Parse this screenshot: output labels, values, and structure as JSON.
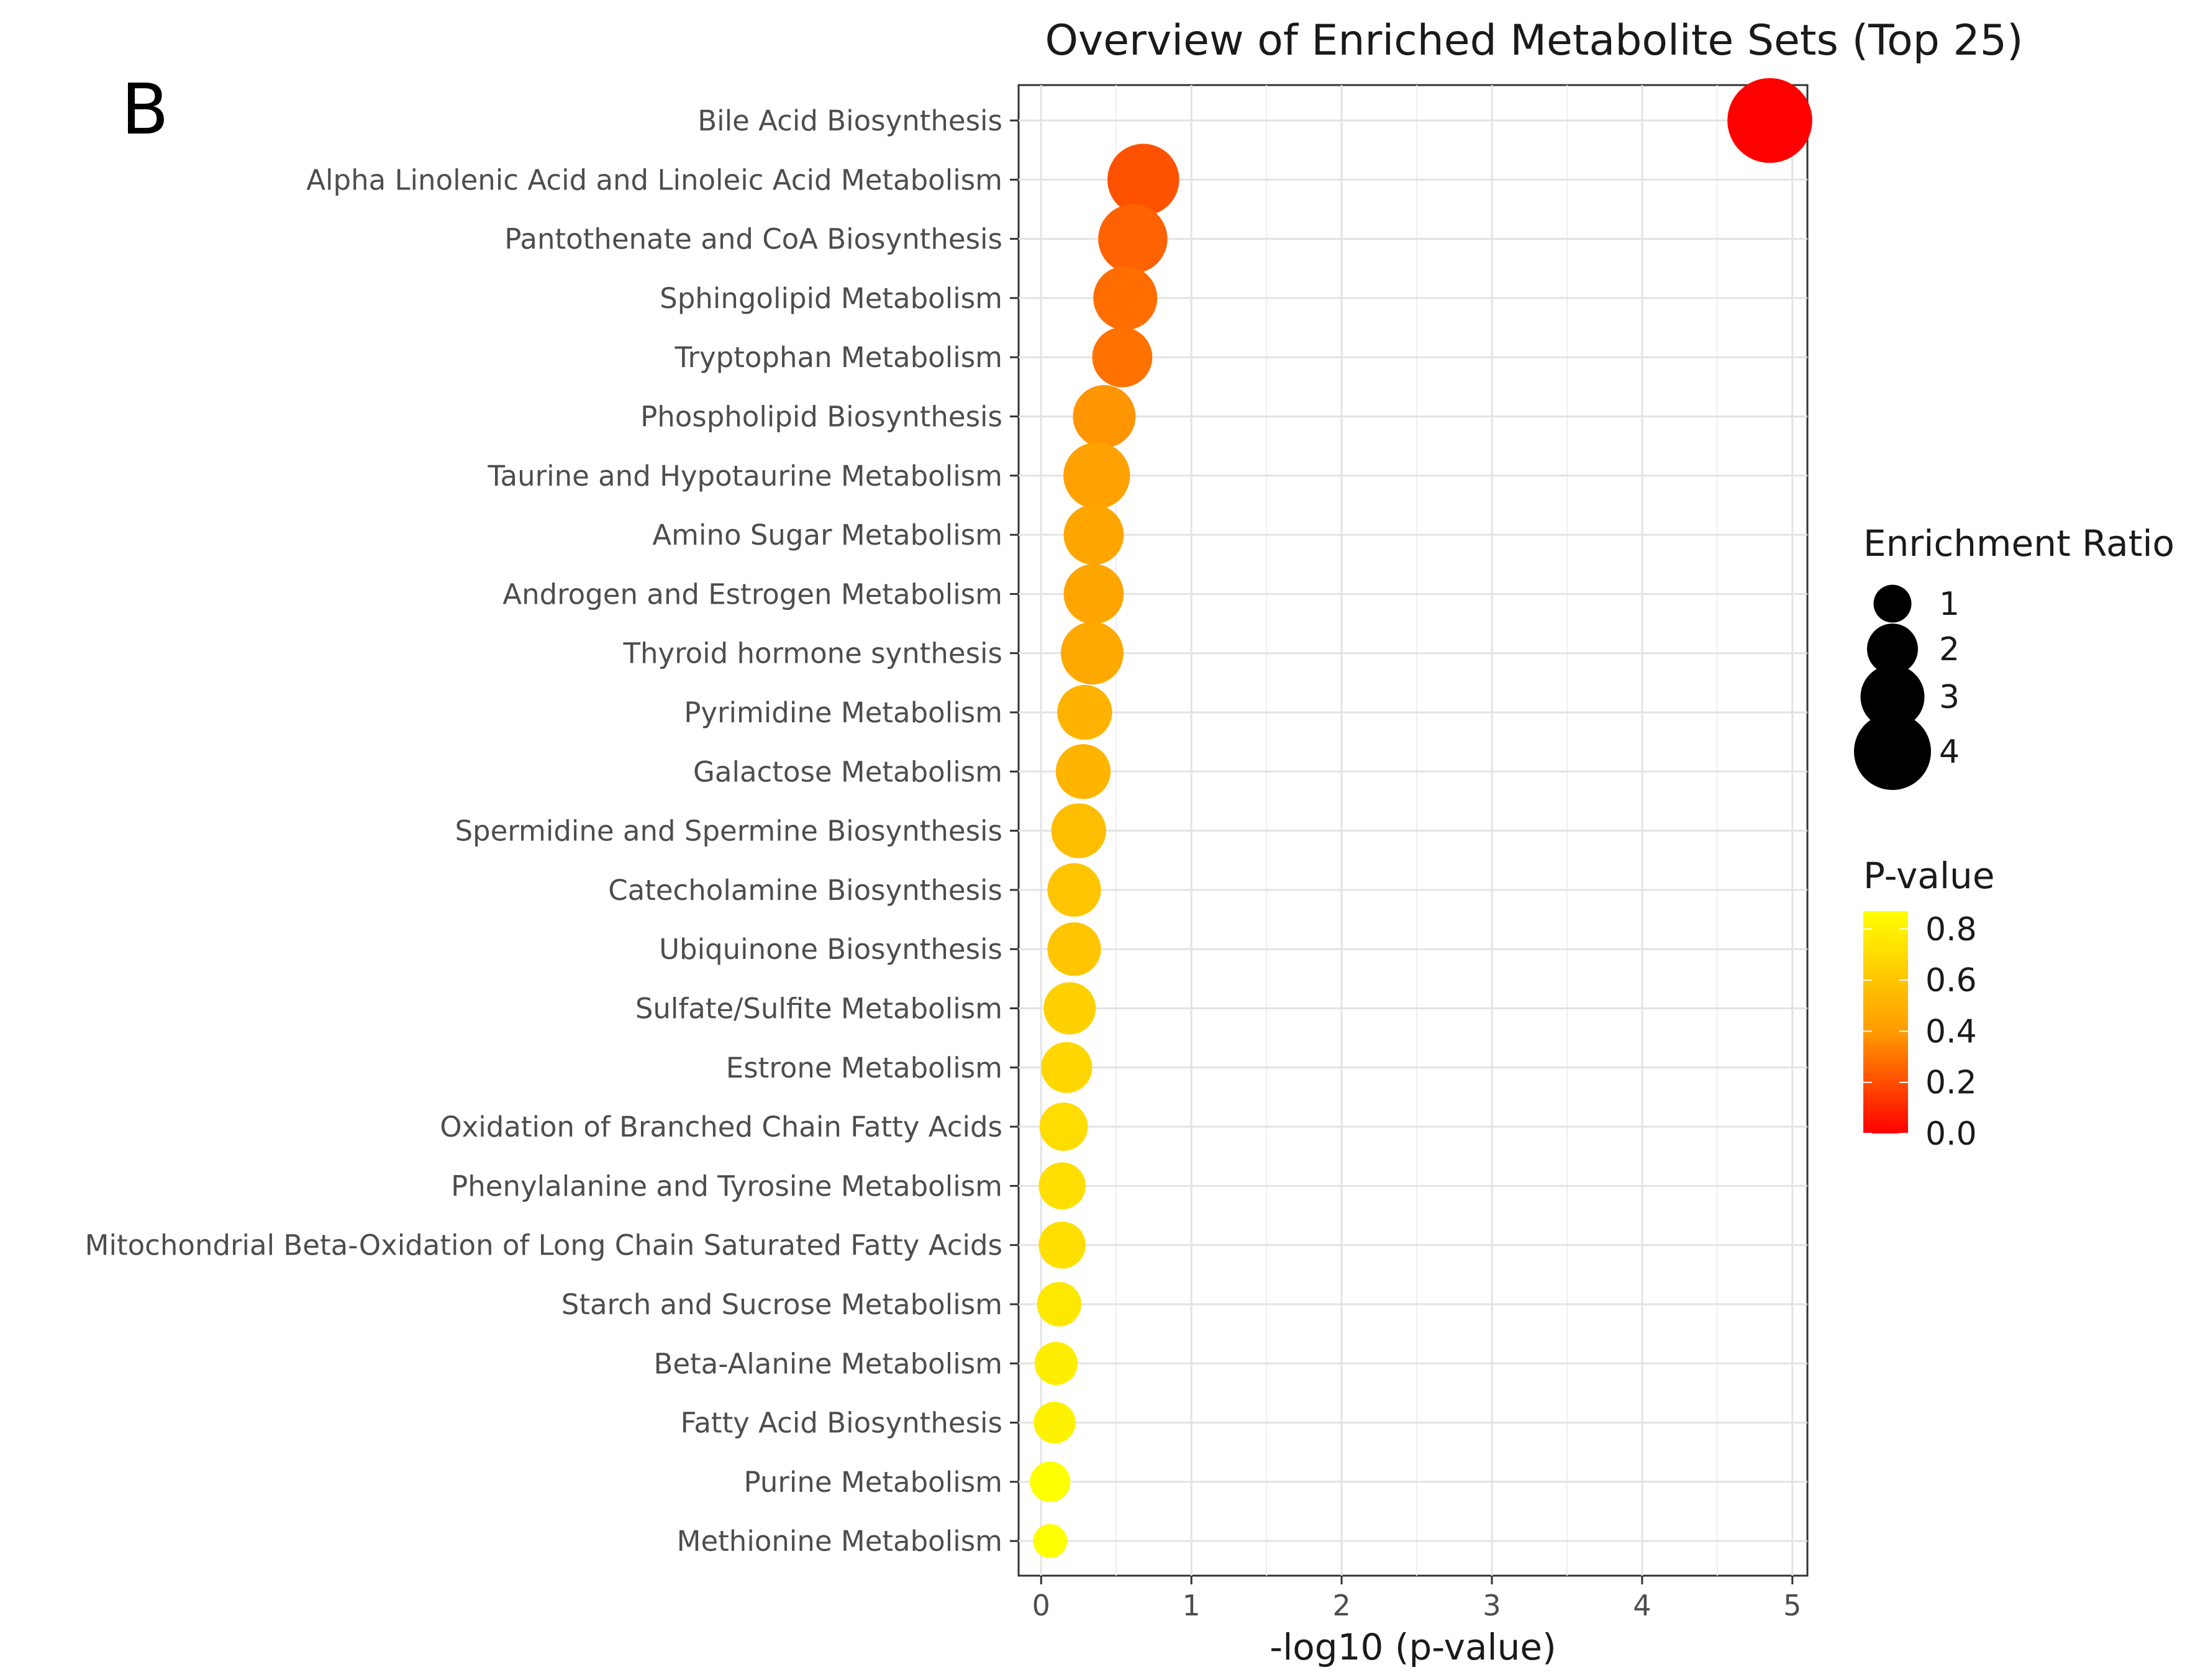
{
  "panel_letter": "B",
  "chart_data": {
    "type": "scatter",
    "title": "Overview of Enriched Metabolite Sets (Top 25)",
    "xlabel": "-log10 (p-value)",
    "ylabel": "",
    "xlim": [
      -0.15,
      5.1
    ],
    "x_ticks": [
      0,
      1,
      2,
      3,
      4,
      5
    ],
    "grid": true,
    "categories": [
      "Bile Acid Biosynthesis",
      "Alpha Linolenic Acid and Linoleic Acid Metabolism",
      "Pantothenate and CoA Biosynthesis",
      "Sphingolipid Metabolism",
      "Tryptophan Metabolism",
      "Phospholipid Biosynthesis",
      "Taurine and Hypotaurine Metabolism",
      "Amino Sugar Metabolism",
      "Androgen and Estrogen Metabolism",
      "Thyroid hormone synthesis",
      "Pyrimidine Metabolism",
      "Galactose Metabolism",
      "Spermidine and Spermine Biosynthesis",
      "Catecholamine Biosynthesis",
      "Ubiquinone Biosynthesis",
      "Sulfate/Sulfite Metabolism",
      "Estrone Metabolism",
      "Oxidation of Branched Chain Fatty Acids",
      "Phenylalanine and Tyrosine Metabolism",
      "Mitochondrial Beta-Oxidation of Long Chain Saturated Fatty Acids",
      "Starch and Sucrose Metabolism",
      "Beta-Alanine Metabolism",
      "Fatty Acid Biosynthesis",
      "Purine Metabolism",
      "Methionine Metabolism"
    ],
    "x": [
      4.85,
      0.68,
      0.61,
      0.56,
      0.54,
      0.42,
      0.37,
      0.35,
      0.35,
      0.34,
      0.29,
      0.28,
      0.25,
      0.22,
      0.22,
      0.19,
      0.17,
      0.15,
      0.14,
      0.14,
      0.12,
      0.1,
      0.09,
      0.06,
      0.06
    ],
    "p_values": [
      1e-05,
      0.21,
      0.25,
      0.28,
      0.29,
      0.38,
      0.43,
      0.45,
      0.45,
      0.46,
      0.51,
      0.52,
      0.56,
      0.6,
      0.6,
      0.65,
      0.68,
      0.71,
      0.72,
      0.72,
      0.76,
      0.79,
      0.81,
      0.87,
      0.87
    ],
    "enrichment_ratio": [
      4.6,
      3.6,
      3.4,
      3.0,
      2.7,
      2.9,
      3.2,
      2.7,
      2.7,
      2.9,
      2.3,
      2.3,
      2.3,
      2.2,
      2.2,
      2.1,
      2.0,
      1.8,
      1.7,
      1.7,
      1.5,
      1.4,
      1.3,
      1.2,
      0.7
    ],
    "legend_size": {
      "title": "Enrichment Ratio",
      "values": [
        1,
        2,
        3,
        4
      ],
      "labels": [
        "1",
        "2",
        "3",
        "4"
      ]
    },
    "legend_color": {
      "title": "P-value",
      "range": [
        0.0,
        0.87
      ],
      "ticks": [
        0.8,
        0.6,
        0.4,
        0.2,
        0.0
      ],
      "labels": [
        "0.8",
        "0.6",
        "0.4",
        "0.2",
        "0.0"
      ],
      "color_low": "#ff0000",
      "color_mid": "#ff9900",
      "color_high": "#ffff00"
    },
    "legend_position": "right"
  }
}
